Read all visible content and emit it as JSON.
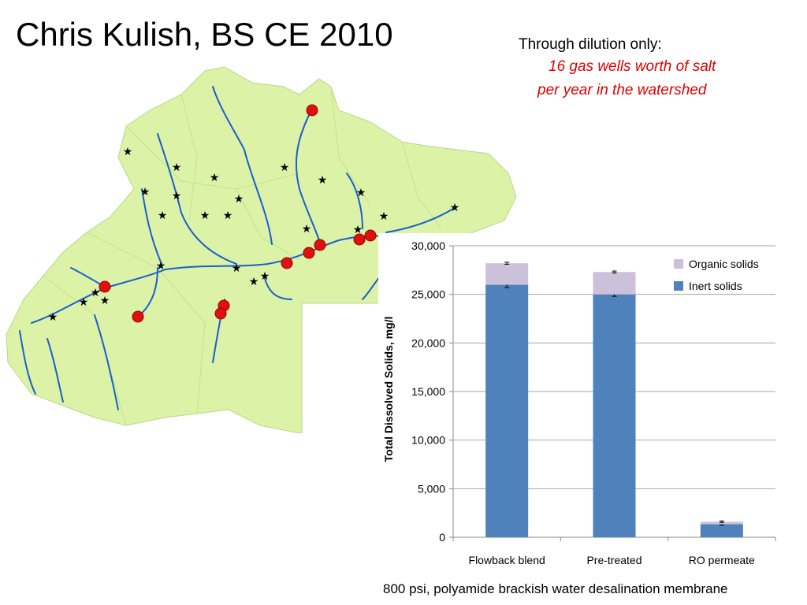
{
  "slide": {
    "title": "Chris Kulish, BS CE 2010",
    "note_line1": "Through dilution only:",
    "note_line2": "16 gas wells worth of salt",
    "note_line3": "per year in the watershed",
    "footer": "800 psi, polyamide brackish water desalination membrane"
  },
  "colors": {
    "highlight_text": "#e00000",
    "map_land": "#dcf2a6",
    "map_river": "#1a5fd0",
    "map_site": "#e01010",
    "inert": "#4f81bd",
    "organic": "#ccc1da"
  },
  "map": {
    "markers": "watershed-site-markers"
  },
  "chart_data": {
    "type": "bar",
    "stacked": true,
    "categories": [
      "Flowback blend",
      "Pre-treated",
      "RO permeate"
    ],
    "series": [
      {
        "name": "Inert solids",
        "values": [
          26000,
          25000,
          1350
        ],
        "errors": [
          300,
          200,
          100
        ]
      },
      {
        "name": "Organic solids",
        "values": [
          2200,
          2300,
          250
        ],
        "errors": [
          100,
          100,
          80
        ]
      }
    ],
    "ylabel": "Total Dissolved Solids, mg/l",
    "xlabel": "",
    "ylim": [
      0,
      30000
    ],
    "yticks": [
      0,
      5000,
      10000,
      15000,
      20000,
      25000,
      30000
    ],
    "ytick_labels": [
      "0",
      "5,000",
      "10,000",
      "15,000",
      "20,000",
      "25,000",
      "30,000"
    ],
    "grid": true,
    "legend_position": "top-right",
    "legend_order": [
      "Organic solids",
      "Inert solids"
    ]
  }
}
